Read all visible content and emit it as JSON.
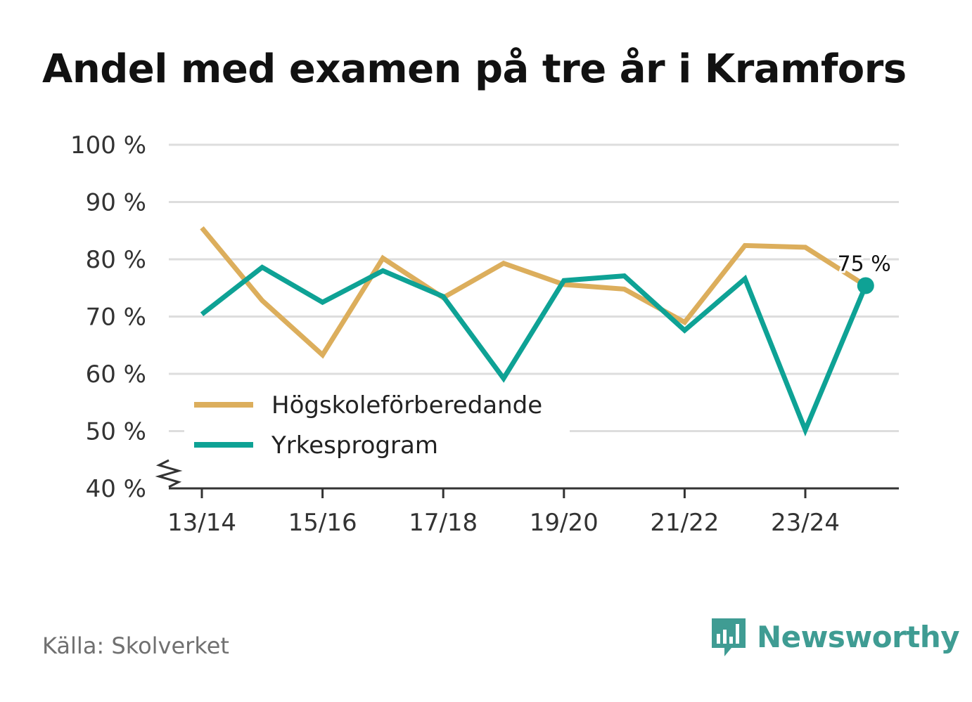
{
  "colors": {
    "series_a": "#dcae5c",
    "series_b": "#0ea295",
    "grid": "#dddddd",
    "axis": "#333333",
    "text": "#333333",
    "brand": "#3f9c93"
  },
  "chart_data": {
    "type": "line",
    "title": "Andel med examen på tre år i Kramfors",
    "categories": [
      "13/14",
      "14/15",
      "15/16",
      "16/17",
      "17/18",
      "18/19",
      "19/20",
      "20/21",
      "21/22",
      "22/23",
      "23/24",
      "24/25"
    ],
    "x_tick_labels": [
      "13/14",
      "15/16",
      "17/18",
      "19/20",
      "21/22",
      "23/24"
    ],
    "y_tick_labels": [
      "40 %",
      "50 %",
      "60 %",
      "70 %",
      "80 %",
      "90 %",
      "100 %"
    ],
    "ylim": [
      40,
      100
    ],
    "y_ticks": [
      40,
      50,
      60,
      70,
      80,
      90,
      100
    ],
    "axis_break": true,
    "grid": true,
    "legend_position": "bottom-left",
    "series": [
      {
        "name": "Högskoleförberedande",
        "color": "#dcae5c",
        "values": [
          85.5,
          72.8,
          63.3,
          80.2,
          73.3,
          79.3,
          75.6,
          74.8,
          69.0,
          82.4,
          82.1,
          75.4
        ]
      },
      {
        "name": "Yrkesprogram",
        "color": "#0ea295",
        "values": [
          70.4,
          78.6,
          72.5,
          78.0,
          73.5,
          59.2,
          76.3,
          77.1,
          67.6,
          76.6,
          50.2,
          75.4
        ]
      }
    ],
    "end_label": "75 %"
  },
  "source": "Källa: Skolverket",
  "brand": {
    "name": "Newsworthy",
    "logo_icon": "bar-chart-speech-bubble-icon"
  }
}
